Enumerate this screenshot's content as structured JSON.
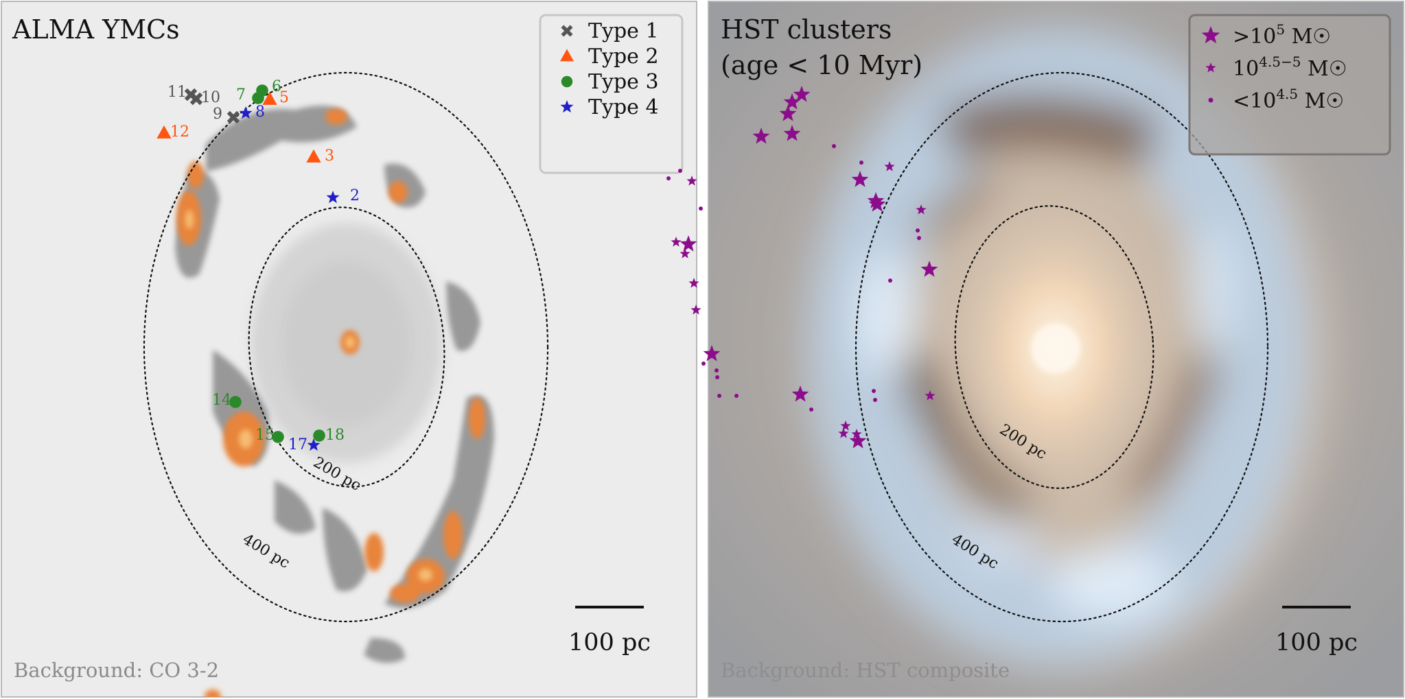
{
  "panels": [
    {
      "id": "alma",
      "title": "ALMA YMCs",
      "background_label": "Background: CO 3-2",
      "scalebar_label": "100 pc",
      "ellipse_labels": {
        "inner": "200 pc",
        "outer": "400 pc"
      },
      "legend": [
        {
          "label": "Type 1",
          "marker": "x",
          "color": "#555555"
        },
        {
          "label": "Type 2",
          "marker": "triangle",
          "color": "#ff5510"
        },
        {
          "label": "Type 3",
          "marker": "circle",
          "color": "#2a8a2a"
        },
        {
          "label": "Type 4",
          "marker": "star",
          "color": "#1f1fc8"
        }
      ]
    },
    {
      "id": "hst",
      "title_lines": [
        "HST clusters",
        "(age < 10 Myr)"
      ],
      "background_label": "Background: HST composite",
      "scalebar_label": "100 pc",
      "ellipse_labels": {
        "inner": "200 pc",
        "outer": "400 pc"
      },
      "legend": [
        {
          "label_base": ">10",
          "label_sup": "5",
          "label_unit": " M☉",
          "marker": "star-large",
          "color": "#8b0d8b"
        },
        {
          "label_base": "10",
          "label_sup": "4.5−5",
          "label_unit": " M☉",
          "marker": "star-medium",
          "color": "#8b0d8b"
        },
        {
          "label_base": "<10",
          "label_sup": "4.5",
          "label_unit": " M☉",
          "marker": "dot",
          "color": "#8b0d8b"
        }
      ]
    }
  ],
  "chart_data": [
    {
      "type": "scatter",
      "title": "ALMA YMCs",
      "note": "Background: CO 3-2",
      "series": [
        {
          "name": "Type 1",
          "marker": "x",
          "color": "#555555",
          "ids": [
            "9",
            "10",
            "11"
          ]
        },
        {
          "name": "Type 2",
          "marker": "triangle",
          "color": "#ff5510",
          "ids": [
            "3",
            "5",
            "12"
          ]
        },
        {
          "name": "Type 3",
          "marker": "circle",
          "color": "#2a8a2a",
          "ids": [
            "6",
            "7",
            "14",
            "15",
            "18"
          ]
        },
        {
          "name": "Type 4",
          "marker": "star",
          "color": "#1f1fc8",
          "ids": [
            "2",
            "8",
            "17"
          ]
        }
      ]
    },
    {
      "type": "scatter",
      "title": "HST clusters (age < 10 Myr)",
      "note": "Background: HST composite",
      "series": [
        {
          "name": ">10^5 M☉",
          "marker": "star-large",
          "count": 13
        },
        {
          "name": "10^4.5-5 M☉",
          "marker": "star-medium",
          "count": 11
        },
        {
          "name": "<10^4.5 M☉",
          "marker": "dot",
          "count": 16
        }
      ]
    }
  ]
}
